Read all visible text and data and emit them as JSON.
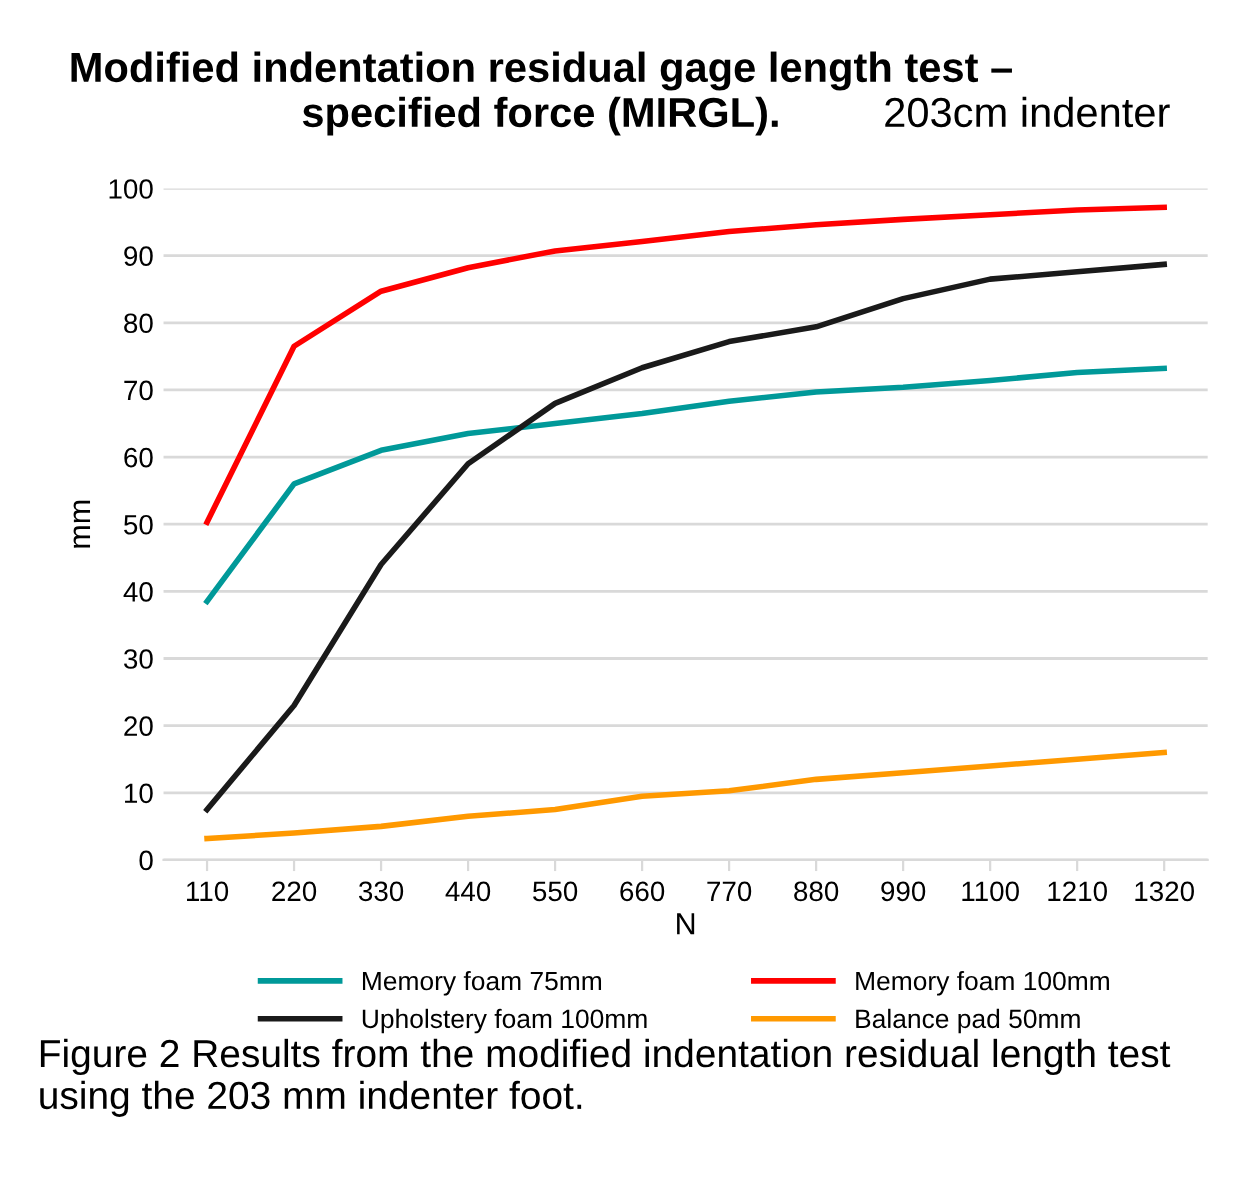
{
  "chart_data": {
    "type": "line",
    "title": "Modified indentation residual gage length test –\nspecified force (MIRGL).",
    "subtitle": "203cm indenter",
    "xlabel": "N",
    "ylabel": "mm",
    "categories": [
      "110",
      "220",
      "330",
      "440",
      "550",
      "660",
      "770",
      "880",
      "990",
      "1100",
      "1210",
      "1320"
    ],
    "series": [
      {
        "name": "Memory foam 75mm",
        "color": "#009999",
        "values": [
          38.5,
          56,
          61,
          63.5,
          65,
          66.5,
          68.3,
          69.7,
          70.4,
          71.4,
          72.6,
          73.2
        ]
      },
      {
        "name": "Memory foam 100mm",
        "color": "#ff0000",
        "values": [
          50.3,
          76.5,
          84.7,
          88.2,
          90.7,
          92.1,
          93.6,
          94.6,
          95.4,
          96.1,
          96.8,
          97.2
        ]
      },
      {
        "name": "Upholstery foam 100mm",
        "color": "#1a1a1a",
        "values": [
          7.5,
          23,
          44,
          59,
          68,
          73.3,
          77.2,
          79.4,
          83.6,
          86.5,
          87.6,
          88.7
        ]
      },
      {
        "name": "Balance pad 50mm",
        "color": "#ff9900",
        "values": [
          3.2,
          4,
          5,
          6.5,
          7.5,
          9.5,
          10.3,
          12,
          13,
          14,
          15,
          16
        ]
      }
    ],
    "ylim": [
      0,
      100
    ],
    "yticks": [
      0,
      10,
      20,
      30,
      40,
      50,
      60,
      70,
      80,
      90,
      100
    ],
    "grid": "y",
    "legend": "bottom",
    "marker": "none",
    "line_style": "solid",
    "annotations": [
      "Figure 2 Results from the modified indentation residual length test using the 203 mm indenter foot."
    ]
  }
}
